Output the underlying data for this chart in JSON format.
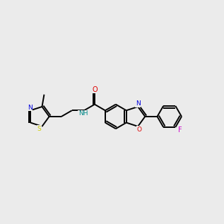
{
  "bg": "#ebebeb",
  "bond_lw": 1.4,
  "atom_colors": {
    "N": "#0000dd",
    "O": "#dd0000",
    "S": "#cccc00",
    "F": "#cc00cc",
    "H": "#008888"
  },
  "BL": 0.058
}
